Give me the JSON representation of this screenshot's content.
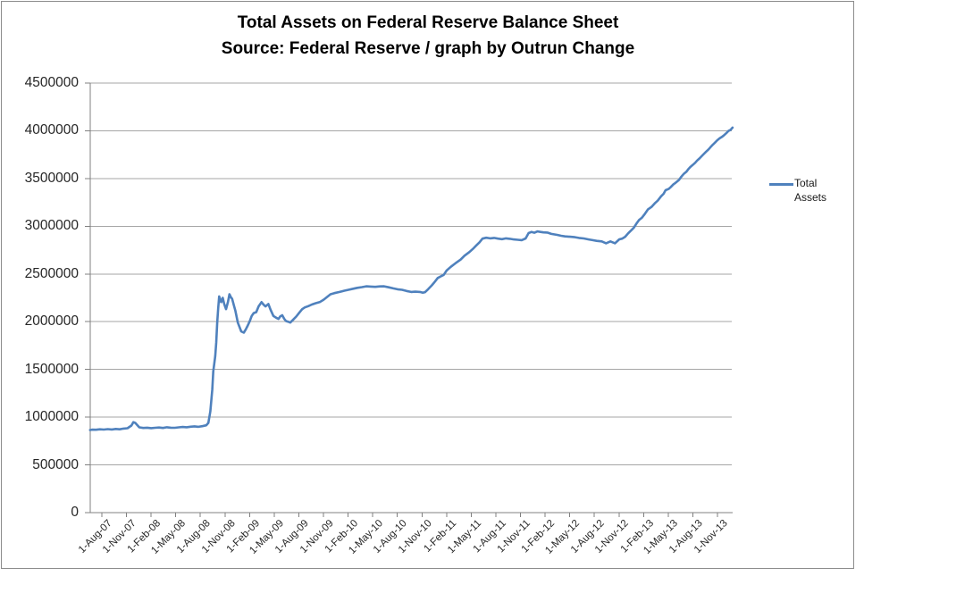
{
  "chart_data": {
    "type": "line",
    "title": "Total Assets on Federal Reserve Balance Sheet",
    "subtitle": "Source: Federal Reserve / graph by Outrun Change",
    "xlabel": "",
    "ylabel": "",
    "ylim": [
      0,
      4500000
    ],
    "y_tick_step": 500000,
    "y_tick_labels": [
      "0",
      "500000",
      "1000000",
      "1500000",
      "2000000",
      "2500000",
      "3000000",
      "3500000",
      "4000000",
      "4500000"
    ],
    "x_unit": "weeks since 1-Aug-07 (weekly H.4.1 data, approximate)",
    "x_tick_interval_weeks": 13,
    "x_tick_labels": [
      "1-Aug-07",
      "1-Nov-07",
      "1-Feb-08",
      "1-May-08",
      "1-Aug-08",
      "1-Nov-08",
      "1-Feb-09",
      "1-May-09",
      "1-Aug-09",
      "1-Nov-09",
      "1-Feb-10",
      "1-May-10",
      "1-Aug-10",
      "1-Nov-10",
      "1-Feb-11",
      "1-May-11",
      "1-Aug-11",
      "1-Nov-11",
      "1-Feb-12",
      "1-May-12",
      "1-Aug-12",
      "1-Nov-12",
      "1-Feb-13",
      "1-May-13",
      "1-Aug-13",
      "1-Nov-13"
    ],
    "grid": "horizontal",
    "legend_position": "right",
    "colors": {
      "line": "#4F81BD",
      "gridline": "#A6A6A6",
      "axis": "#808080",
      "frame_border": "#8C8C8C",
      "text": "#262626",
      "title": "#000000"
    },
    "series": [
      {
        "name": "Total Assets",
        "points": [
          [
            -1,
            865000
          ],
          [
            0,
            869000
          ],
          [
            2,
            868000
          ],
          [
            4,
            873000
          ],
          [
            6,
            870000
          ],
          [
            8,
            875000
          ],
          [
            10,
            871000
          ],
          [
            12,
            877000
          ],
          [
            14,
            873000
          ],
          [
            16,
            880000
          ],
          [
            18,
            884000
          ],
          [
            20,
            912000
          ],
          [
            21,
            948000
          ],
          [
            22,
            939000
          ],
          [
            24,
            893000
          ],
          [
            26,
            887000
          ],
          [
            28,
            890000
          ],
          [
            30,
            885000
          ],
          [
            32,
            889000
          ],
          [
            34,
            892000
          ],
          [
            36,
            887000
          ],
          [
            38,
            894000
          ],
          [
            40,
            890000
          ],
          [
            42,
            889000
          ],
          [
            44,
            893000
          ],
          [
            46,
            897000
          ],
          [
            48,
            894000
          ],
          [
            50,
            900000
          ],
          [
            52,
            904000
          ],
          [
            54,
            899000
          ],
          [
            56,
            906000
          ],
          [
            58,
            915000
          ],
          [
            59,
            940000
          ],
          [
            60,
            1060000
          ],
          [
            61,
            1290000
          ],
          [
            61.5,
            1480000
          ],
          [
            62,
            1560000
          ],
          [
            62.5,
            1640000
          ],
          [
            63,
            1780000
          ],
          [
            63.5,
            1990000
          ],
          [
            64,
            2140000
          ],
          [
            64.5,
            2265000
          ],
          [
            65.5,
            2205000
          ],
          [
            66.3,
            2250000
          ],
          [
            67,
            2190000
          ],
          [
            68,
            2131000
          ],
          [
            69,
            2210000
          ],
          [
            69.7,
            2287000
          ],
          [
            70.5,
            2255000
          ],
          [
            71.1,
            2240000
          ],
          [
            72,
            2170000
          ],
          [
            72.7,
            2116000
          ],
          [
            74,
            1990000
          ],
          [
            75.7,
            1898000
          ],
          [
            77,
            1885000
          ],
          [
            78,
            1920000
          ],
          [
            79,
            1960000
          ],
          [
            80,
            2005000
          ],
          [
            81,
            2060000
          ],
          [
            82,
            2090000
          ],
          [
            83.3,
            2100000
          ],
          [
            84.5,
            2160000
          ],
          [
            86,
            2205000
          ],
          [
            87,
            2180000
          ],
          [
            88,
            2160000
          ],
          [
            89.5,
            2185000
          ],
          [
            90.5,
            2130000
          ],
          [
            92,
            2060000
          ],
          [
            93.5,
            2040000
          ],
          [
            94.6,
            2029000
          ],
          [
            95.5,
            2055000
          ],
          [
            96.5,
            2068000
          ],
          [
            97.5,
            2030000
          ],
          [
            98.4,
            2007000
          ],
          [
            99.5,
            2000000
          ],
          [
            100.6,
            1991000
          ],
          [
            102,
            2020000
          ],
          [
            103.6,
            2054000
          ],
          [
            105,
            2090000
          ],
          [
            106.6,
            2131000
          ],
          [
            108,
            2150000
          ],
          [
            109.7,
            2163000
          ],
          [
            111.5,
            2180000
          ],
          [
            113.5,
            2194000
          ],
          [
            115.5,
            2205000
          ],
          [
            117.5,
            2230000
          ],
          [
            119,
            2255000
          ],
          [
            121,
            2287000
          ],
          [
            123,
            2300000
          ],
          [
            125.6,
            2312000
          ],
          [
            128,
            2325000
          ],
          [
            130.1,
            2334000
          ],
          [
            132.5,
            2345000
          ],
          [
            134.6,
            2355000
          ],
          [
            137,
            2362000
          ],
          [
            139.1,
            2371000
          ],
          [
            141.5,
            2368000
          ],
          [
            143.7,
            2365000
          ],
          [
            146,
            2370000
          ],
          [
            148.2,
            2371000
          ],
          [
            150.5,
            2360000
          ],
          [
            152.8,
            2349000
          ],
          [
            155,
            2340000
          ],
          [
            157.3,
            2334000
          ],
          [
            159.5,
            2322000
          ],
          [
            161.9,
            2312000
          ],
          [
            164,
            2315000
          ],
          [
            166.4,
            2312000
          ],
          [
            167.8,
            2303000
          ],
          [
            169,
            2310000
          ],
          [
            170.5,
            2340000
          ],
          [
            172.4,
            2381000
          ],
          [
            174,
            2420000
          ],
          [
            175.4,
            2458000
          ],
          [
            177,
            2475000
          ],
          [
            178.4,
            2490000
          ],
          [
            179.9,
            2536000
          ],
          [
            182,
            2575000
          ],
          [
            184.5,
            2614000
          ],
          [
            187,
            2650000
          ],
          [
            189,
            2692000
          ],
          [
            191.5,
            2730000
          ],
          [
            193.6,
            2770000
          ],
          [
            195,
            2800000
          ],
          [
            196.6,
            2832000
          ],
          [
            198.1,
            2870000
          ],
          [
            200,
            2880000
          ],
          [
            202,
            2873000
          ],
          [
            204,
            2878000
          ],
          [
            206,
            2870000
          ],
          [
            208,
            2865000
          ],
          [
            210,
            2873000
          ],
          [
            212,
            2868000
          ],
          [
            214,
            2862000
          ],
          [
            216,
            2858000
          ],
          [
            218,
            2854000
          ],
          [
            220,
            2872000
          ],
          [
            221.5,
            2928000
          ],
          [
            223,
            2940000
          ],
          [
            224.5,
            2932000
          ],
          [
            226,
            2946000
          ],
          [
            227.5,
            2940000
          ],
          [
            229,
            2936000
          ],
          [
            231,
            2934000
          ],
          [
            233,
            2920000
          ],
          [
            236,
            2910000
          ],
          [
            238,
            2900000
          ],
          [
            240,
            2894000
          ],
          [
            242.5,
            2890000
          ],
          [
            245,
            2885000
          ],
          [
            247,
            2878000
          ],
          [
            249.5,
            2872000
          ],
          [
            252,
            2862000
          ],
          [
            254,
            2854000
          ],
          [
            256,
            2847000
          ],
          [
            258.6,
            2841000
          ],
          [
            260.8,
            2822000
          ],
          [
            263,
            2841000
          ],
          [
            265.3,
            2822000
          ],
          [
            267.5,
            2863000
          ],
          [
            269,
            2870000
          ],
          [
            270.5,
            2890000
          ],
          [
            272,
            2925000
          ],
          [
            273.5,
            2955000
          ],
          [
            275,
            2987000
          ],
          [
            276.3,
            3030000
          ],
          [
            277.5,
            3065000
          ],
          [
            279,
            3090000
          ],
          [
            280.5,
            3130000
          ],
          [
            282,
            3175000
          ],
          [
            284,
            3205000
          ],
          [
            285.5,
            3240000
          ],
          [
            287,
            3268000
          ],
          [
            288.7,
            3314000
          ],
          [
            290,
            3340000
          ],
          [
            291,
            3377000
          ],
          [
            292.5,
            3390000
          ],
          [
            293.5,
            3408000
          ],
          [
            295,
            3440000
          ],
          [
            296,
            3454000
          ],
          [
            297.8,
            3485000
          ],
          [
            299,
            3520000
          ],
          [
            300.2,
            3548000
          ],
          [
            301.5,
            3570000
          ],
          [
            302.4,
            3594000
          ],
          [
            303.5,
            3620000
          ],
          [
            304.7,
            3641000
          ],
          [
            306,
            3665000
          ],
          [
            307,
            3688000
          ],
          [
            308.2,
            3710000
          ],
          [
            309.3,
            3734000
          ],
          [
            310.5,
            3760000
          ],
          [
            311.5,
            3781000
          ],
          [
            312.8,
            3805000
          ],
          [
            313.8,
            3828000
          ],
          [
            315,
            3855000
          ],
          [
            316,
            3875000
          ],
          [
            317.2,
            3900000
          ],
          [
            318.4,
            3921000
          ],
          [
            319.5,
            3935000
          ],
          [
            320.6,
            3952000
          ],
          [
            321.8,
            3975000
          ],
          [
            322.9,
            3999000
          ],
          [
            324,
            4010000
          ],
          [
            325,
            4033000
          ]
        ]
      }
    ]
  },
  "legend": {
    "label": "Total Assets"
  }
}
